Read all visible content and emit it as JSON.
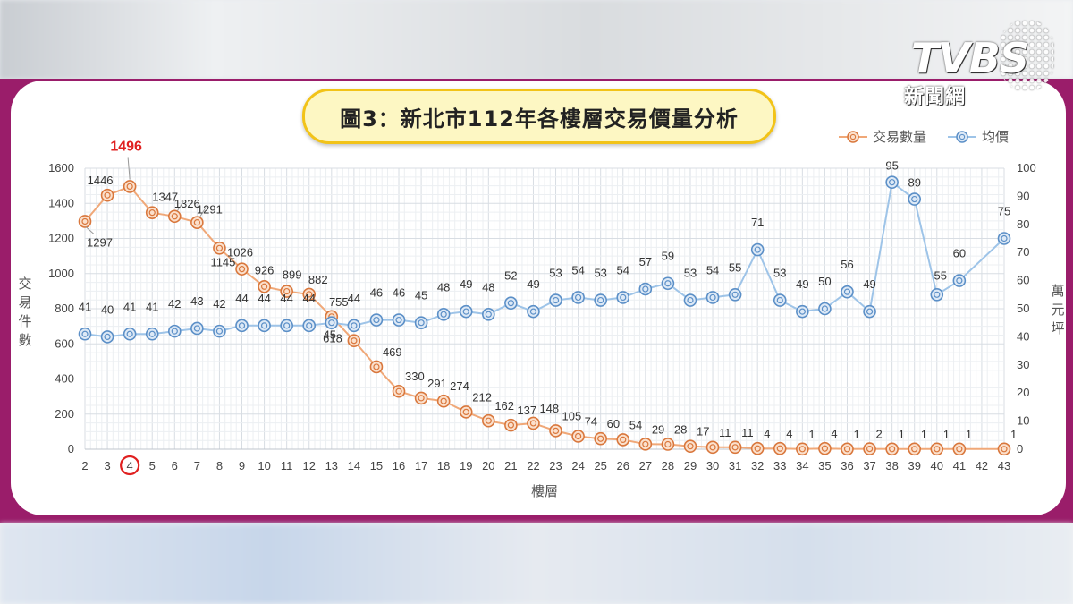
{
  "header": {
    "title": "圖3：新北市112年各樓層交易價量分析",
    "logo_main": "TVBS",
    "logo_sub": "新聞網"
  },
  "chart_data": {
    "type": "line",
    "title": "圖3：新北市112年各樓層交易價量分析",
    "xlabel": "樓層",
    "ylabel_left": "交易件數",
    "ylabel_right": "萬元坪",
    "x": [
      2,
      3,
      4,
      5,
      6,
      7,
      8,
      9,
      10,
      11,
      12,
      13,
      14,
      15,
      16,
      17,
      18,
      19,
      20,
      21,
      22,
      23,
      24,
      25,
      26,
      27,
      28,
      29,
      30,
      31,
      32,
      33,
      34,
      35,
      36,
      37,
      38,
      39,
      40,
      41,
      42,
      43
    ],
    "y_left_range": [
      0,
      1600
    ],
    "y_left_ticks": [
      0,
      200,
      400,
      600,
      800,
      1000,
      1200,
      1400,
      1600
    ],
    "y_right_range": [
      0,
      100
    ],
    "y_right_ticks": [
      0,
      10,
      20,
      30,
      40,
      50,
      60,
      70,
      80,
      90,
      100
    ],
    "grid": true,
    "legend_position": "top-right",
    "highlight": {
      "floor": 4,
      "label": "1496",
      "color": "#e02020"
    },
    "series": [
      {
        "name": "交易數量",
        "axis": "left",
        "color": "#f0a878",
        "values": [
          1297,
          1446,
          1496,
          1347,
          1326,
          1291,
          1145,
          1026,
          926,
          899,
          882,
          755,
          618,
          469,
          330,
          291,
          274,
          212,
          162,
          137,
          148,
          105,
          74,
          60,
          54,
          29,
          28,
          17,
          11,
          11,
          4,
          4,
          1,
          4,
          1,
          2,
          1,
          1,
          1,
          1,
          null,
          1
        ]
      },
      {
        "name": "均價",
        "axis": "right",
        "color": "#9ec4e8",
        "values": [
          41,
          40,
          41,
          41,
          42,
          43,
          42,
          44,
          44,
          44,
          44,
          45,
          44,
          46,
          46,
          45,
          48,
          49,
          48,
          52,
          49,
          53,
          54,
          53,
          54,
          57,
          59,
          53,
          54,
          55,
          71,
          53,
          49,
          50,
          56,
          49,
          95,
          89,
          55,
          60,
          null,
          75
        ]
      }
    ]
  }
}
